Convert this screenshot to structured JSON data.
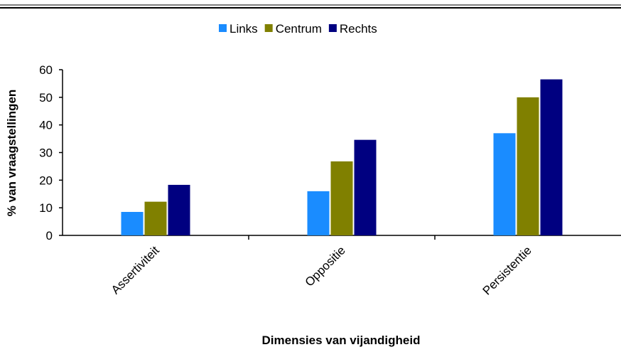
{
  "chart_data": {
    "type": "bar",
    "categories": [
      "Assertiviteit",
      "Oppositie",
      "Persistentie"
    ],
    "series": [
      {
        "name": "Links",
        "color": "#1a8cff",
        "values": [
          8.5,
          16,
          37
        ]
      },
      {
        "name": "Centrum",
        "color": "#808000",
        "values": [
          12.2,
          26.8,
          50
        ]
      },
      {
        "name": "Rechts",
        "color": "#000080",
        "values": [
          18.3,
          34.6,
          56.5
        ]
      }
    ],
    "ylabel": "% van vraagstellingen",
    "xlabel": "Dimensies van vijandigheid",
    "ylim": [
      0,
      60
    ],
    "yticks": [
      0,
      10,
      20,
      30,
      40,
      50,
      60
    ],
    "legend": "top"
  }
}
